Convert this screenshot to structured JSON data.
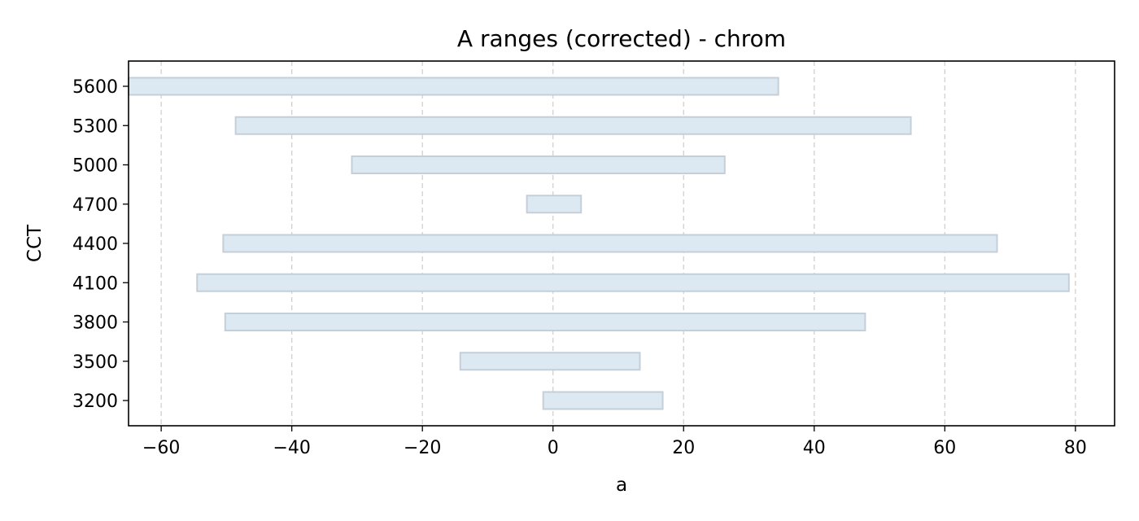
{
  "chart_data": {
    "type": "bar",
    "orientation": "horizontal",
    "title": "A ranges (corrected) - chrom",
    "xlabel": "a",
    "ylabel": "CCT",
    "xlim": [
      -65,
      86
    ],
    "xticks": [
      -60,
      -40,
      -20,
      0,
      20,
      40,
      60,
      80
    ],
    "xtick_labels": [
      "−60",
      "−40",
      "−20",
      "0",
      "20",
      "40",
      "60",
      "80"
    ],
    "categories": [
      "3200",
      "3500",
      "3800",
      "4100",
      "4400",
      "4700",
      "5000",
      "5300",
      "5600"
    ],
    "ranges": [
      [
        -1.5,
        16.8
      ],
      [
        -14.2,
        13.3
      ],
      [
        -50.2,
        47.8
      ],
      [
        -54.5,
        79.0
      ],
      [
        -50.5,
        68.0
      ],
      [
        -4.0,
        4.3
      ],
      [
        -30.8,
        26.3
      ],
      [
        -48.6,
        54.8
      ],
      [
        -65.0,
        34.5
      ]
    ],
    "grid": {
      "x": true,
      "y": false,
      "style": "dashed"
    },
    "colors": {
      "bar_fill": "#dce8f2",
      "bar_edge": "#c4cfd8",
      "grid": "#d0d0d0"
    }
  }
}
